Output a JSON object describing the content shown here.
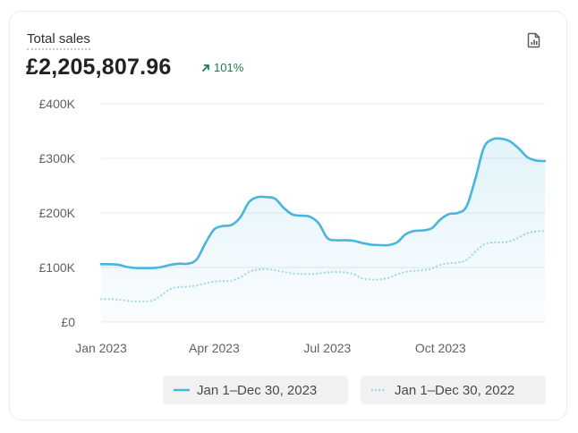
{
  "card": {
    "title": "Total sales",
    "total_value": "£2,205,807.96",
    "change_percent": "101%",
    "report_icon": "report-document-icon",
    "change_icon": "arrow-up-right-icon"
  },
  "colors": {
    "current": "#47b5df",
    "previous": "#a3d8ee",
    "grid": "#e8e8e8",
    "axis_text": "#616161",
    "positive": "#1f7a4d"
  },
  "chart_data": {
    "type": "line",
    "title": "Total sales",
    "xlabel": "",
    "ylabel": "",
    "ylim": [
      0,
      400000
    ],
    "y_ticks": [
      {
        "value": 0,
        "label": "£0"
      },
      {
        "value": 100000,
        "label": "£100K"
      },
      {
        "value": 200000,
        "label": "£200K"
      },
      {
        "value": 300000,
        "label": "£300K"
      },
      {
        "value": 400000,
        "label": "£400K"
      }
    ],
    "x_ticks": [
      {
        "index": 0,
        "label": "Jan 2023"
      },
      {
        "index": 13,
        "label": "Apr 2023"
      },
      {
        "index": 26,
        "label": "Jul 2023"
      },
      {
        "index": 39,
        "label": "Oct 2023"
      }
    ],
    "x_count": 52,
    "series": [
      {
        "name": "Jan 1–Dec 30, 2023",
        "style": "solid",
        "area": true,
        "values": [
          106000,
          106000,
          105000,
          101000,
          99000,
          99000,
          99000,
          101000,
          105000,
          107000,
          107000,
          115000,
          145000,
          170000,
          176000,
          178000,
          192000,
          220000,
          229000,
          229000,
          226000,
          209000,
          197000,
          195000,
          193000,
          181000,
          154000,
          150000,
          150000,
          149000,
          145000,
          142000,
          141000,
          141000,
          146000,
          161000,
          167000,
          168000,
          172000,
          188000,
          198000,
          200000,
          212000,
          262000,
          320000,
          335000,
          336000,
          331000,
          318000,
          302000,
          296000,
          295000
        ]
      },
      {
        "name": "Jan 1–Dec 30, 2022",
        "style": "dotted",
        "area": false,
        "values": [
          42000,
          42000,
          41000,
          39000,
          38000,
          38000,
          40000,
          50000,
          61000,
          64000,
          65000,
          67000,
          71000,
          74000,
          75000,
          76000,
          82000,
          92000,
          96000,
          97000,
          95000,
          92000,
          89000,
          88000,
          88000,
          89000,
          91000,
          92000,
          91000,
          88000,
          80000,
          78000,
          78000,
          81000,
          87000,
          92000,
          94000,
          95000,
          98000,
          105000,
          108000,
          109000,
          114000,
          129000,
          142000,
          146000,
          146000,
          148000,
          155000,
          163000,
          166000,
          167000
        ]
      }
    ]
  },
  "legend": [
    {
      "label": "Jan 1–Dec 30, 2023",
      "style": "solid"
    },
    {
      "label": "Jan 1–Dec 30, 2022",
      "style": "dotted"
    }
  ]
}
